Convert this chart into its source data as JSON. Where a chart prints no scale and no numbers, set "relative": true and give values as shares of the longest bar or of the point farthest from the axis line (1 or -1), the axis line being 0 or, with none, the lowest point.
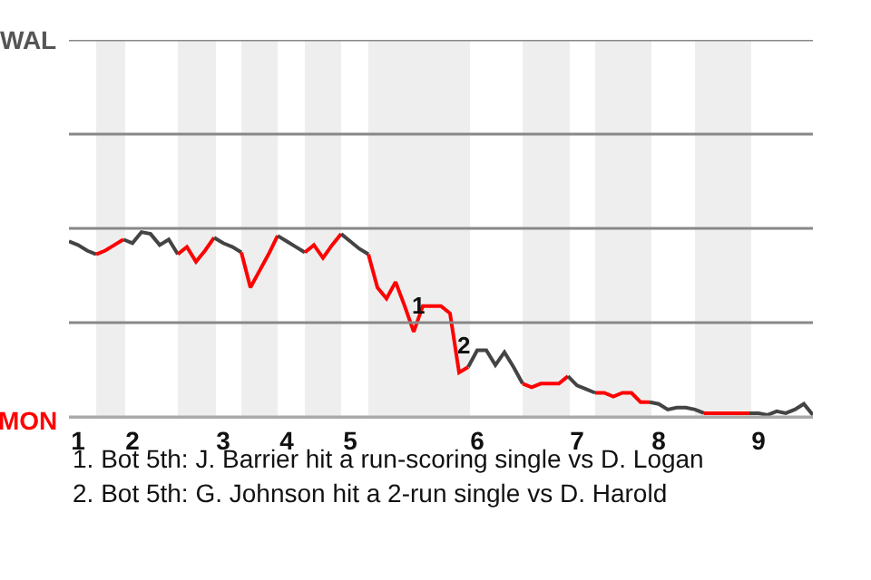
{
  "chart_data": {
    "type": "line",
    "relative": true,
    "categories": [
      null,
      "1",
      null,
      null,
      null,
      null,
      null,
      "2",
      null,
      null,
      null,
      null,
      null,
      null,
      null,
      null,
      null,
      "3",
      null,
      null,
      null,
      null,
      null,
      null,
      "4",
      null,
      null,
      null,
      null,
      null,
      null,
      "5",
      null,
      null,
      null,
      null,
      null,
      null,
      null,
      null,
      null,
      null,
      null,
      null,
      null,
      "6",
      null,
      null,
      null,
      null,
      null,
      null,
      null,
      null,
      null,
      null,
      "7",
      null,
      null,
      null,
      null,
      null,
      null,
      null,
      null,
      "8",
      null,
      null,
      null,
      null,
      null,
      null,
      null,
      null,
      null,
      null,
      "9",
      null,
      null,
      null,
      null,
      null,
      null
    ],
    "marker": "none",
    "line_style": "solid",
    "series": [
      {
        "color": "#444444",
        "values": [
          0.95,
          0.93,
          0.9,
          0.88,
          null,
          null,
          null,
          null,
          null,
          null,
          null,
          null,
          null,
          null,
          null,
          null,
          null,
          null,
          null,
          null,
          null,
          null,
          null,
          null,
          null,
          null,
          null,
          null,
          null,
          null,
          null,
          null,
          null,
          null,
          null,
          null,
          null,
          null,
          null,
          null,
          null,
          null,
          null,
          null,
          null,
          null,
          null,
          null,
          null,
          null,
          null,
          null,
          null,
          null,
          null,
          null,
          null,
          null,
          null,
          null,
          null,
          null,
          null,
          null,
          null,
          null,
          null,
          null,
          null,
          null,
          null,
          null,
          null,
          null,
          null,
          null,
          null,
          null,
          null,
          null,
          null,
          null,
          null
        ]
      },
      {
        "color": "#ff0000",
        "values": [
          null,
          null,
          null,
          0.88,
          0.9,
          0.93,
          0.96,
          null,
          null,
          null,
          null,
          null,
          null,
          null,
          null,
          null,
          null,
          null,
          null,
          null,
          null,
          null,
          null,
          null,
          null,
          null,
          null,
          null,
          null,
          null,
          null,
          null,
          null,
          null,
          null,
          null,
          null,
          null,
          null,
          null,
          null,
          null,
          null,
          null,
          null,
          null,
          null,
          null,
          null,
          null,
          null,
          null,
          null,
          null,
          null,
          null,
          null,
          null,
          null,
          null,
          null,
          null,
          null,
          null,
          null,
          null,
          null,
          null,
          null,
          null,
          null,
          null,
          null,
          null,
          null,
          null,
          null,
          null,
          null,
          null,
          null,
          null,
          null
        ]
      },
      {
        "color": "#444444",
        "values": [
          null,
          null,
          null,
          null,
          null,
          null,
          0.96,
          0.94,
          1,
          0.99,
          0.93,
          0.96,
          0.88,
          null,
          null,
          null,
          null,
          null,
          null,
          null,
          null,
          null,
          null,
          null,
          null,
          null,
          null,
          null,
          null,
          null,
          null,
          null,
          null,
          null,
          null,
          null,
          null,
          null,
          null,
          null,
          null,
          null,
          null,
          null,
          null,
          null,
          null,
          null,
          null,
          null,
          null,
          null,
          null,
          null,
          null,
          null,
          null,
          null,
          null,
          null,
          null,
          null,
          null,
          null,
          null,
          null,
          null,
          null,
          null,
          null,
          null,
          null,
          null,
          null,
          null,
          null,
          null,
          null,
          null,
          null,
          null,
          null,
          null
        ]
      },
      {
        "color": "#ff0000",
        "values": [
          null,
          null,
          null,
          null,
          null,
          null,
          null,
          null,
          null,
          null,
          null,
          null,
          0.88,
          0.92,
          0.84,
          0.9,
          0.97,
          null,
          null,
          null,
          null,
          null,
          null,
          null,
          null,
          null,
          null,
          null,
          null,
          null,
          null,
          null,
          null,
          null,
          null,
          null,
          null,
          null,
          null,
          null,
          null,
          null,
          null,
          null,
          null,
          null,
          null,
          null,
          null,
          null,
          null,
          null,
          null,
          null,
          null,
          null,
          null,
          null,
          null,
          null,
          null,
          null,
          null,
          null,
          null,
          null,
          null,
          null,
          null,
          null,
          null,
          null,
          null,
          null,
          null,
          null,
          null,
          null,
          null,
          null,
          null,
          null,
          null
        ]
      },
      {
        "color": "#444444",
        "values": [
          null,
          null,
          null,
          null,
          null,
          null,
          null,
          null,
          null,
          null,
          null,
          null,
          null,
          null,
          null,
          null,
          0.97,
          0.94,
          0.92,
          0.89,
          null,
          null,
          null,
          null,
          null,
          null,
          null,
          null,
          null,
          null,
          null,
          null,
          null,
          null,
          null,
          null,
          null,
          null,
          null,
          null,
          null,
          null,
          null,
          null,
          null,
          null,
          null,
          null,
          null,
          null,
          null,
          null,
          null,
          null,
          null,
          null,
          null,
          null,
          null,
          null,
          null,
          null,
          null,
          null,
          null,
          null,
          null,
          null,
          null,
          null,
          null,
          null,
          null,
          null,
          null,
          null,
          null,
          null,
          null,
          null,
          null,
          null,
          null
        ]
      },
      {
        "color": "#ff0000",
        "values": [
          null,
          null,
          null,
          null,
          null,
          null,
          null,
          null,
          null,
          null,
          null,
          null,
          null,
          null,
          null,
          null,
          null,
          null,
          null,
          0.89,
          0.7,
          0.79,
          0.88,
          0.98,
          null,
          null,
          null,
          null,
          null,
          null,
          null,
          null,
          null,
          null,
          null,
          null,
          null,
          null,
          null,
          null,
          null,
          null,
          null,
          null,
          null,
          null,
          null,
          null,
          null,
          null,
          null,
          null,
          null,
          null,
          null,
          null,
          null,
          null,
          null,
          null,
          null,
          null,
          null,
          null,
          null,
          null,
          null,
          null,
          null,
          null,
          null,
          null,
          null,
          null,
          null,
          null,
          null,
          null,
          null,
          null,
          null,
          null,
          null
        ]
      },
      {
        "color": "#444444",
        "values": [
          null,
          null,
          null,
          null,
          null,
          null,
          null,
          null,
          null,
          null,
          null,
          null,
          null,
          null,
          null,
          null,
          null,
          null,
          null,
          null,
          null,
          null,
          null,
          0.98,
          0.95,
          0.92,
          0.89,
          null,
          null,
          null,
          null,
          null,
          null,
          null,
          null,
          null,
          null,
          null,
          null,
          null,
          null,
          null,
          null,
          null,
          null,
          null,
          null,
          null,
          null,
          null,
          null,
          null,
          null,
          null,
          null,
          null,
          null,
          null,
          null,
          null,
          null,
          null,
          null,
          null,
          null,
          null,
          null,
          null,
          null,
          null,
          null,
          null,
          null,
          null,
          null,
          null,
          null,
          null,
          null,
          null,
          null,
          null,
          null
        ]
      },
      {
        "color": "#ff0000",
        "values": [
          null,
          null,
          null,
          null,
          null,
          null,
          null,
          null,
          null,
          null,
          null,
          null,
          null,
          null,
          null,
          null,
          null,
          null,
          null,
          null,
          null,
          null,
          null,
          null,
          null,
          null,
          0.89,
          0.93,
          0.86,
          0.93,
          0.99,
          null,
          null,
          null,
          null,
          null,
          null,
          null,
          null,
          null,
          null,
          null,
          null,
          null,
          null,
          null,
          null,
          null,
          null,
          null,
          null,
          null,
          null,
          null,
          null,
          null,
          null,
          null,
          null,
          null,
          null,
          null,
          null,
          null,
          null,
          null,
          null,
          null,
          null,
          null,
          null,
          null,
          null,
          null,
          null,
          null,
          null,
          null,
          null,
          null,
          null,
          null,
          null
        ]
      },
      {
        "color": "#444444",
        "values": [
          null,
          null,
          null,
          null,
          null,
          null,
          null,
          null,
          null,
          null,
          null,
          null,
          null,
          null,
          null,
          null,
          null,
          null,
          null,
          null,
          null,
          null,
          null,
          null,
          null,
          null,
          null,
          null,
          null,
          null,
          0.99,
          0.95,
          0.91,
          0.88,
          null,
          null,
          null,
          null,
          null,
          null,
          null,
          null,
          null,
          null,
          null,
          null,
          null,
          null,
          null,
          null,
          null,
          null,
          null,
          null,
          null,
          null,
          null,
          null,
          null,
          null,
          null,
          null,
          null,
          null,
          null,
          null,
          null,
          null,
          null,
          null,
          null,
          null,
          null,
          null,
          null,
          null,
          null,
          null,
          null,
          null,
          null,
          null,
          null
        ]
      },
      {
        "color": "#ff0000",
        "values": [
          null,
          null,
          null,
          null,
          null,
          null,
          null,
          null,
          null,
          null,
          null,
          null,
          null,
          null,
          null,
          null,
          null,
          null,
          null,
          null,
          null,
          null,
          null,
          null,
          null,
          null,
          null,
          null,
          null,
          null,
          null,
          null,
          null,
          0.88,
          0.7,
          0.64,
          0.73,
          0.6,
          0.46,
          0.6,
          0.6,
          0.6,
          0.56,
          0.24,
          0.27,
          null,
          null,
          null,
          null,
          null,
          null,
          null,
          null,
          null,
          null,
          null,
          null,
          null,
          null,
          null,
          null,
          null,
          null,
          null,
          null,
          null,
          null,
          null,
          null,
          null,
          null,
          null,
          null,
          null,
          null,
          null,
          null,
          null,
          null,
          null,
          null,
          null,
          null
        ]
      },
      {
        "color": "#444444",
        "values": [
          null,
          null,
          null,
          null,
          null,
          null,
          null,
          null,
          null,
          null,
          null,
          null,
          null,
          null,
          null,
          null,
          null,
          null,
          null,
          null,
          null,
          null,
          null,
          null,
          null,
          null,
          null,
          null,
          null,
          null,
          null,
          null,
          null,
          null,
          null,
          null,
          null,
          null,
          null,
          null,
          null,
          null,
          null,
          null,
          0.27,
          0.36,
          0.36,
          0.28,
          0.35,
          0.27,
          0.18,
          null,
          null,
          null,
          null,
          null,
          null,
          null,
          null,
          null,
          null,
          null,
          null,
          null,
          null,
          null,
          null,
          null,
          null,
          null,
          null,
          null,
          null,
          null,
          null,
          null,
          null,
          null,
          null,
          null,
          null,
          null,
          null
        ]
      },
      {
        "color": "#ff0000",
        "values": [
          null,
          null,
          null,
          null,
          null,
          null,
          null,
          null,
          null,
          null,
          null,
          null,
          null,
          null,
          null,
          null,
          null,
          null,
          null,
          null,
          null,
          null,
          null,
          null,
          null,
          null,
          null,
          null,
          null,
          null,
          null,
          null,
          null,
          null,
          null,
          null,
          null,
          null,
          null,
          null,
          null,
          null,
          null,
          null,
          null,
          null,
          null,
          null,
          null,
          null,
          0.18,
          0.16,
          0.18,
          0.18,
          0.18,
          0.22,
          null,
          null,
          null,
          null,
          null,
          null,
          null,
          null,
          null,
          null,
          null,
          null,
          null,
          null,
          null,
          null,
          null,
          null,
          null,
          null,
          null,
          null,
          null,
          null,
          null,
          null,
          null
        ]
      },
      {
        "color": "#444444",
        "values": [
          null,
          null,
          null,
          null,
          null,
          null,
          null,
          null,
          null,
          null,
          null,
          null,
          null,
          null,
          null,
          null,
          null,
          null,
          null,
          null,
          null,
          null,
          null,
          null,
          null,
          null,
          null,
          null,
          null,
          null,
          null,
          null,
          null,
          null,
          null,
          null,
          null,
          null,
          null,
          null,
          null,
          null,
          null,
          null,
          null,
          null,
          null,
          null,
          null,
          null,
          null,
          null,
          null,
          null,
          null,
          0.22,
          0.17,
          0.15,
          0.13,
          null,
          null,
          null,
          null,
          null,
          null,
          null,
          null,
          null,
          null,
          null,
          null,
          null,
          null,
          null,
          null,
          null,
          null,
          null,
          null,
          null,
          null,
          null,
          null
        ]
      },
      {
        "color": "#ff0000",
        "values": [
          null,
          null,
          null,
          null,
          null,
          null,
          null,
          null,
          null,
          null,
          null,
          null,
          null,
          null,
          null,
          null,
          null,
          null,
          null,
          null,
          null,
          null,
          null,
          null,
          null,
          null,
          null,
          null,
          null,
          null,
          null,
          null,
          null,
          null,
          null,
          null,
          null,
          null,
          null,
          null,
          null,
          null,
          null,
          null,
          null,
          null,
          null,
          null,
          null,
          null,
          null,
          null,
          null,
          null,
          null,
          null,
          null,
          null,
          0.13,
          0.13,
          0.11,
          0.13,
          0.13,
          0.08,
          0.08,
          null,
          null,
          null,
          null,
          null,
          null,
          null,
          null,
          null,
          null,
          null,
          null,
          null,
          null,
          null,
          null,
          null,
          null
        ]
      },
      {
        "color": "#444444",
        "values": [
          null,
          null,
          null,
          null,
          null,
          null,
          null,
          null,
          null,
          null,
          null,
          null,
          null,
          null,
          null,
          null,
          null,
          null,
          null,
          null,
          null,
          null,
          null,
          null,
          null,
          null,
          null,
          null,
          null,
          null,
          null,
          null,
          null,
          null,
          null,
          null,
          null,
          null,
          null,
          null,
          null,
          null,
          null,
          null,
          null,
          null,
          null,
          null,
          null,
          null,
          null,
          null,
          null,
          null,
          null,
          null,
          null,
          null,
          null,
          null,
          null,
          null,
          null,
          null,
          0.08,
          0.07,
          0.04,
          0.05,
          0.05,
          0.04,
          0.02,
          null,
          null,
          null,
          null,
          null,
          null,
          null,
          null,
          null,
          null,
          null,
          null
        ]
      },
      {
        "color": "#ff0000",
        "values": [
          null,
          null,
          null,
          null,
          null,
          null,
          null,
          null,
          null,
          null,
          null,
          null,
          null,
          null,
          null,
          null,
          null,
          null,
          null,
          null,
          null,
          null,
          null,
          null,
          null,
          null,
          null,
          null,
          null,
          null,
          null,
          null,
          null,
          null,
          null,
          null,
          null,
          null,
          null,
          null,
          null,
          null,
          null,
          null,
          null,
          null,
          null,
          null,
          null,
          null,
          null,
          null,
          null,
          null,
          null,
          null,
          null,
          null,
          null,
          null,
          null,
          null,
          null,
          null,
          null,
          null,
          null,
          null,
          null,
          null,
          0.02,
          0.02,
          0.02,
          0.02,
          0.02,
          0.02,
          null,
          null,
          null,
          null,
          null,
          null,
          null
        ]
      },
      {
        "color": "#444444",
        "values": [
          null,
          null,
          null,
          null,
          null,
          null,
          null,
          null,
          null,
          null,
          null,
          null,
          null,
          null,
          null,
          null,
          null,
          null,
          null,
          null,
          null,
          null,
          null,
          null,
          null,
          null,
          null,
          null,
          null,
          null,
          null,
          null,
          null,
          null,
          null,
          null,
          null,
          null,
          null,
          null,
          null,
          null,
          null,
          null,
          null,
          null,
          null,
          null,
          null,
          null,
          null,
          null,
          null,
          null,
          null,
          null,
          null,
          null,
          null,
          null,
          null,
          null,
          null,
          null,
          null,
          null,
          null,
          null,
          null,
          null,
          null,
          null,
          null,
          null,
          null,
          0.02,
          0.02,
          0.01,
          0.03,
          0.02,
          0.04,
          0.07,
          0.01
        ]
      }
    ],
    "ref_lines": [
      {
        "axis": "y",
        "value": 0,
        "label": "MON",
        "color": "#aaaaaa"
      },
      {
        "axis": "y",
        "value": 0.51,
        "label": null,
        "color": "#888888"
      },
      {
        "axis": "y",
        "value": 1.02,
        "label": null,
        "color": "#888888"
      },
      {
        "axis": "y",
        "value": 1.53,
        "label": null,
        "color": "#888888"
      },
      {
        "axis": "y",
        "value": 2.04,
        "label": "WAL",
        "color": "#888888"
      }
    ],
    "annotations": [
      {
        "text": "1",
        "y": 0.46
      },
      {
        "text": "2",
        "y": 0.24
      },
      "1. Bot 5th: J. Barrier hit a run-scoring single vs D. Logan",
      "2. Bot 5th: G. Johnson hit a 2-run single vs D. Harold"
    ]
  }
}
